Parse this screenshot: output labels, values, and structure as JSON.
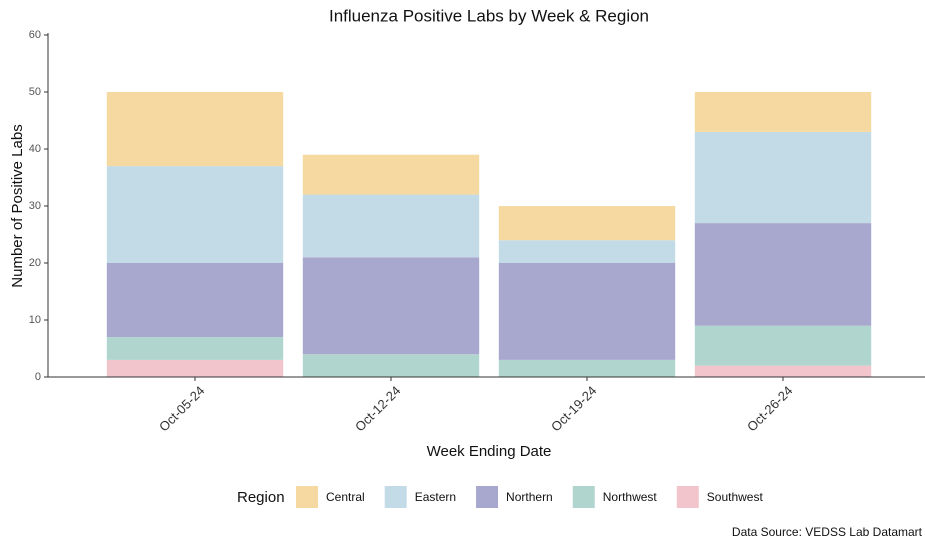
{
  "chart_data": {
    "type": "stacked_bar",
    "title": "Influenza Positive Labs by Week & Region",
    "x_label": "Week Ending Date",
    "y_label": "Number of Positive Labs",
    "legend_title": "Region",
    "source": "Data Source: VEDSS Lab Datamart",
    "categories": [
      "Oct-05-24",
      "Oct-12-24",
      "Oct-19-24",
      "Oct-26-24"
    ],
    "series": [
      {
        "name": "Central",
        "color": "#f5d9a0",
        "values": [
          13,
          7,
          6,
          7
        ]
      },
      {
        "name": "Eastern",
        "color": "#c3dbe6",
        "values": [
          17,
          11,
          4,
          16
        ]
      },
      {
        "name": "Northern",
        "color": "#a8a8cf",
        "values": [
          13,
          17,
          17,
          18
        ]
      },
      {
        "name": "Northwest",
        "color": "#b0d5cf",
        "values": [
          4,
          4,
          3,
          7
        ]
      },
      {
        "name": "Southwest",
        "color": "#f2c4cc",
        "values": [
          3,
          0,
          0,
          2
        ]
      }
    ],
    "ylim": [
      0,
      60
    ],
    "yticks": [
      0,
      10,
      20,
      30,
      40,
      50,
      60
    ],
    "grid": false,
    "legend_position": "bottom"
  }
}
